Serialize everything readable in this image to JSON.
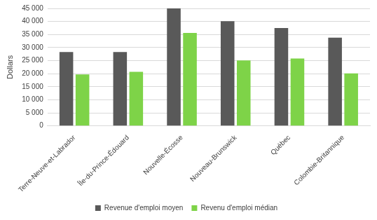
{
  "chart_data": {
    "type": "bar",
    "y_label": "Dollars",
    "categories": [
      "Terre-Neuve-et-Labrador",
      "Île-du-Prince-Édouard",
      "Nouvelle-Écosse",
      "Nouveau-Brunswick",
      "Québec",
      "Colombie-Britannique"
    ],
    "series": [
      {
        "name": "Revenue d'emploi moyen",
        "color": "#595959",
        "values": [
          28300,
          28300,
          45000,
          40100,
          37500,
          33800
        ]
      },
      {
        "name": "Revenu d'emploi médian",
        "color": "#7ed348",
        "values": [
          19700,
          20700,
          35600,
          25100,
          25800,
          20100
        ]
      }
    ],
    "ylim": [
      0,
      45000
    ],
    "yticks": [
      0,
      {
        "value": 5000,
        "label": "5 000"
      },
      {
        "value": 10000,
        "label": "10 000"
      },
      {
        "value": 15000,
        "label": "15 000"
      },
      {
        "value": 20000,
        "label": "20 000"
      },
      {
        "value": 25000,
        "label": "25 000"
      },
      {
        "value": 30000,
        "label": "30 000"
      },
      {
        "value": 35000,
        "label": "35 000"
      },
      {
        "value": 40000,
        "label": "40 000"
      },
      {
        "value": 45000,
        "label": "45 000"
      }
    ],
    "grid": true,
    "legend": "bottom"
  }
}
